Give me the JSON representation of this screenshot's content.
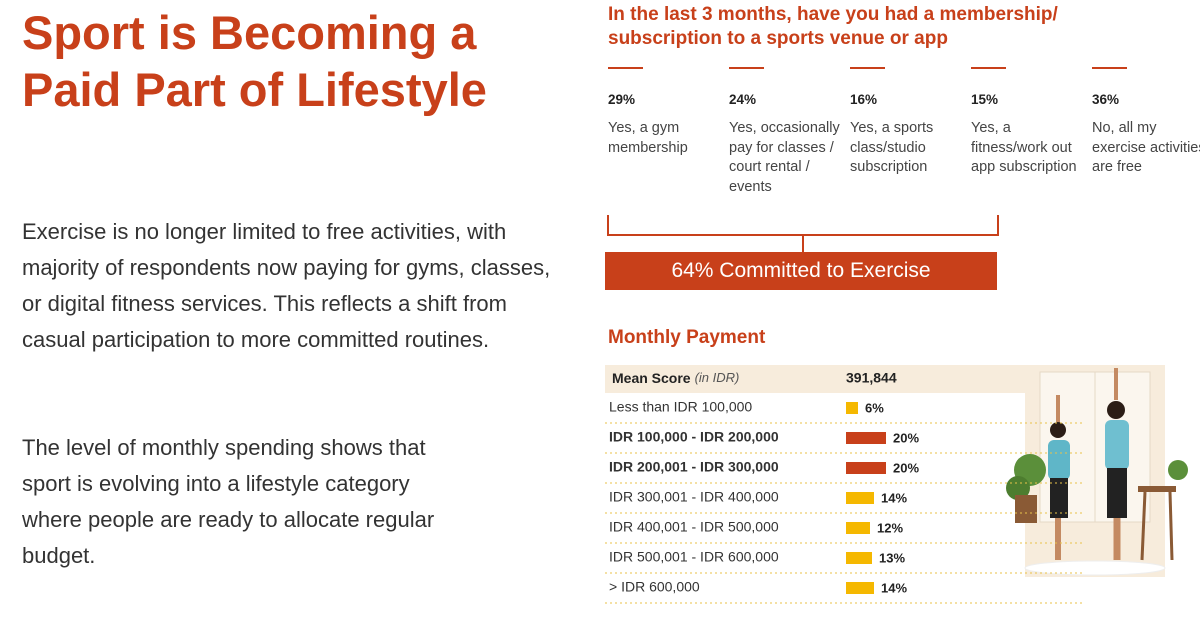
{
  "header": {
    "title": "Sport is Becoming a Paid Part of Lifestyle"
  },
  "body": {
    "paragraphs": [
      "Exercise is no longer limited to free activities, with majority of respondents now paying for gyms, classes, or digital fitness services. This reflects a shift from casual participation to more committed routines.",
      "The level of monthly spending shows that sport is evolving into a lifestyle category where people are ready to allocate regular budget."
    ]
  },
  "survey": {
    "question": "In the last 3 months, have you had a membership/ subscription to a sports venue or app",
    "options": [
      {
        "percent": "29%",
        "text": "Yes, a gym membership"
      },
      {
        "percent": "24%",
        "text": "Yes, occasionally pay for classes / court rental / events"
      },
      {
        "percent": "16%",
        "text": "Yes, a sports class/studio subscription"
      },
      {
        "percent": "15%",
        "text": "Yes, a fitness/work out app subscription"
      },
      {
        "percent": "36%",
        "text": "No, all my exercise activities are free"
      }
    ],
    "summary": "64% Committed to Exercise"
  },
  "chart_data": {
    "type": "bar",
    "title": "Monthly Payment",
    "mean_label": "Mean Score",
    "mean_unit": "(in IDR)",
    "mean_value": "391,844",
    "categories": [
      "Less than IDR 100,000",
      "IDR 100,000 - IDR 200,000",
      "IDR 200,001 - IDR 300,000",
      "IDR 300,001 - IDR 400,000",
      "IDR 400,001 - IDR 500,000",
      "IDR 500,001 - IDR 600,000",
      "> IDR 600,000"
    ],
    "values": [
      6,
      20,
      20,
      14,
      12,
      13,
      14
    ],
    "value_labels": [
      "6%",
      "20%",
      "20%",
      "14%",
      "12%",
      "13%",
      "14%"
    ],
    "colors": [
      "#f5b800",
      "#c8401a",
      "#c8401a",
      "#f5b800",
      "#f5b800",
      "#f5b800",
      "#f5b800"
    ]
  }
}
